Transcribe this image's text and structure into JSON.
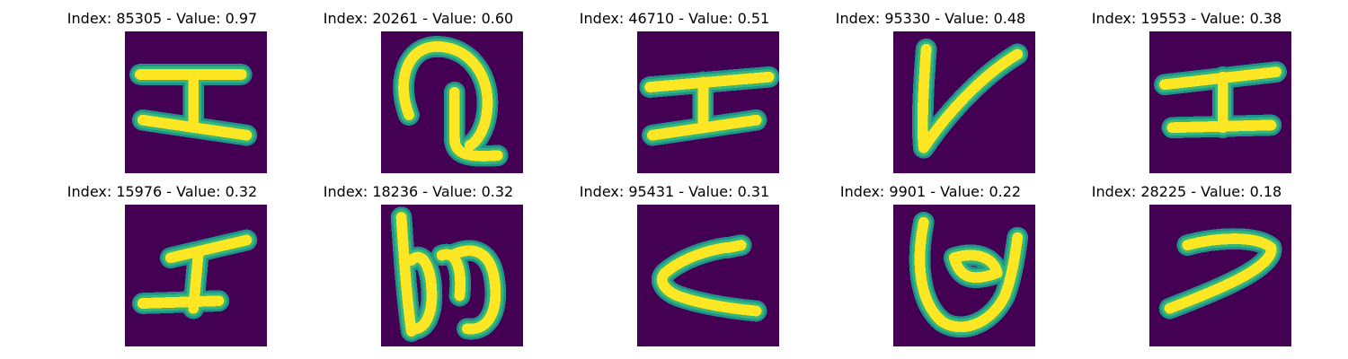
{
  "colors": {
    "background": "#440154",
    "stroke_core": "#fde725",
    "stroke_edge": "#35b779",
    "stroke_halo": "#21918c"
  },
  "panels": [
    {
      "title": "Index: 85305 - Value: 0.97",
      "index": 85305,
      "value": 0.97,
      "glyph": "I-shape"
    },
    {
      "title": "Index: 20261 - Value: 0.60",
      "index": 20261,
      "value": 0.6,
      "glyph": "Q-shape"
    },
    {
      "title": "Index: 46710 - Value: 0.51",
      "index": 46710,
      "value": 0.51,
      "glyph": "I-shape"
    },
    {
      "title": "Index: 95330 - Value: 0.48",
      "index": 95330,
      "value": 0.48,
      "glyph": "V-shape"
    },
    {
      "title": "Index: 19553 - Value: 0.38",
      "index": 19553,
      "value": 0.38,
      "glyph": "I-shape"
    },
    {
      "title": "Index: 15976 - Value: 0.32",
      "index": 15976,
      "value": 0.32,
      "glyph": "I-shape"
    },
    {
      "title": "Index: 18236 - Value: 0.32",
      "index": 18236,
      "value": 0.32,
      "glyph": "b-shape"
    },
    {
      "title": "Index: 95431 - Value: 0.31",
      "index": 95431,
      "value": 0.31,
      "glyph": "C-shape"
    },
    {
      "title": "Index: 9901 - Value: 0.22",
      "index": 9901,
      "value": 0.22,
      "glyph": "U-shape"
    },
    {
      "title": "Index: 28225 - Value: 0.18",
      "index": 28225,
      "value": 0.18,
      "glyph": "hook-shape"
    }
  ]
}
